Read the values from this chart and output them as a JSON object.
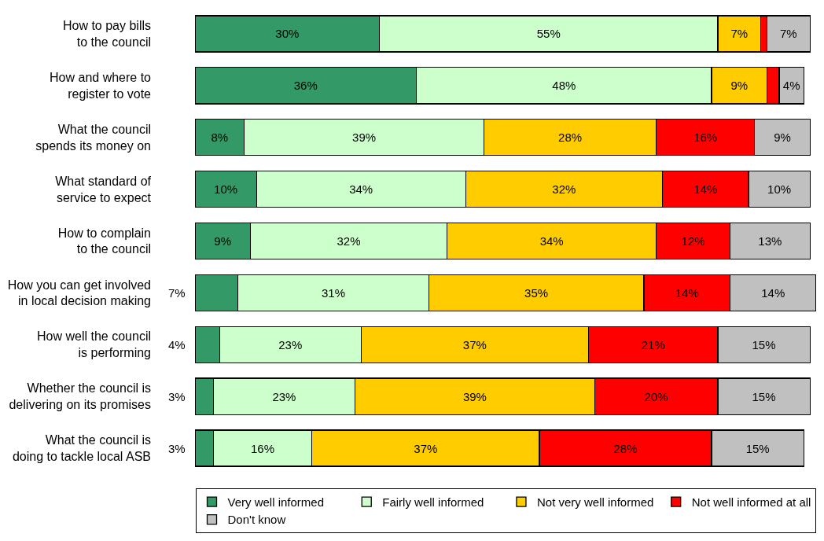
{
  "chart_data": {
    "type": "bar",
    "orientation": "horizontal",
    "stacked": true,
    "legend": "bottom",
    "categories": [
      "How to pay bills to the council",
      "How and where to register to vote",
      "What the council spends its money on",
      "What standard of service to expect",
      "How to complain to the council",
      "How you can get involved in local decision making",
      "How well the council is performing",
      "Whether the council is delivering on its promises",
      "What the council is doing to tackle local ASB"
    ],
    "xlim": [
      0,
      101
    ],
    "series": [
      {
        "name": "Very well informed",
        "color": "#339966",
        "values": [
          30,
          36,
          8,
          10,
          9,
          7,
          4,
          3,
          3
        ],
        "value_labels": [
          "30%",
          "36%",
          "8%",
          "10%",
          "9%",
          "7%",
          "4%",
          "3%",
          "3%"
        ]
      },
      {
        "name": "Fairly well informed",
        "color": "#ccffcc",
        "values": [
          55,
          48,
          39,
          34,
          32,
          31,
          23,
          23,
          16
        ],
        "value_labels": [
          "55%",
          "48%",
          "39%",
          "34%",
          "32%",
          "31%",
          "23%",
          "23%",
          "16%"
        ]
      },
      {
        "name": "Not very well informed",
        "color": "#ffcc00",
        "values": [
          7,
          9,
          28,
          32,
          34,
          35,
          37,
          39,
          37
        ],
        "value_labels": [
          "7%",
          "9%",
          "28%",
          "32%",
          "34%",
          "35%",
          "37%",
          "39%",
          "37%"
        ]
      },
      {
        "name": "Not well informed at all",
        "color": "#ff0000",
        "values": [
          1,
          2,
          16,
          14,
          12,
          14,
          21,
          20,
          28
        ],
        "value_labels": [
          null,
          null,
          "16%",
          "14%",
          "12%",
          "14%",
          "21%",
          "20%",
          "28%"
        ]
      },
      {
        "name": "Don't know",
        "color": "#c0c0c0",
        "values": [
          7,
          4,
          9,
          10,
          13,
          14,
          15,
          15,
          15
        ],
        "value_labels": [
          "7%",
          "4%",
          "9%",
          "10%",
          "13%",
          "14%",
          "15%",
          "15%",
          "15%"
        ]
      }
    ]
  }
}
